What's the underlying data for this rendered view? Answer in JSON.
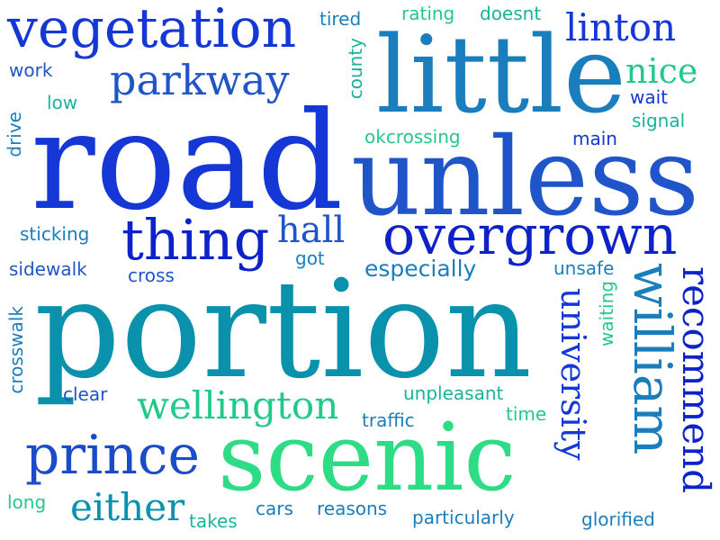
{
  "palette": {
    "blue": "#1437d6",
    "deep_blue": "#0d22c8",
    "mid_blue": "#1f55c8",
    "teal_blue": "#1a7ebd",
    "teal": "#0a92ad",
    "sea_green": "#19b39a",
    "green": "#23c98a",
    "mint": "#2edc86"
  },
  "words": {
    "road": "road",
    "portion": "portion",
    "unless": "unless",
    "little": "little",
    "scenic": "scenic",
    "overgrown": "overgrown",
    "vegetation": "vegetation",
    "thing": "thing",
    "prince": "prince",
    "william": "william",
    "parkway": "parkway",
    "recommend": "recommend",
    "wellington": "wellington",
    "either": "either",
    "university": "university",
    "linton": "linton",
    "hall": "hall",
    "nice": "nice",
    "especially": "especially",
    "okcrossing": "okcrossing",
    "tired": "tired",
    "rating": "rating",
    "doesnt": "doesnt",
    "county": "county",
    "work": "work",
    "low": "low",
    "drive": "drive",
    "wait": "wait",
    "signal": "signal",
    "main": "main",
    "sticking": "sticking",
    "sidewalk": "sidewalk",
    "cross": "cross",
    "got": "got",
    "unsafe": "unsafe",
    "crosswalk": "crosswalk",
    "waiting": "waiting",
    "clear": "clear",
    "unpleasant": "unpleasant",
    "traffic": "traffic",
    "time": "time",
    "long": "long",
    "takes": "takes",
    "cars": "cars",
    "reasons": "reasons",
    "particularly": "particularly",
    "glorified": "glorified"
  }
}
